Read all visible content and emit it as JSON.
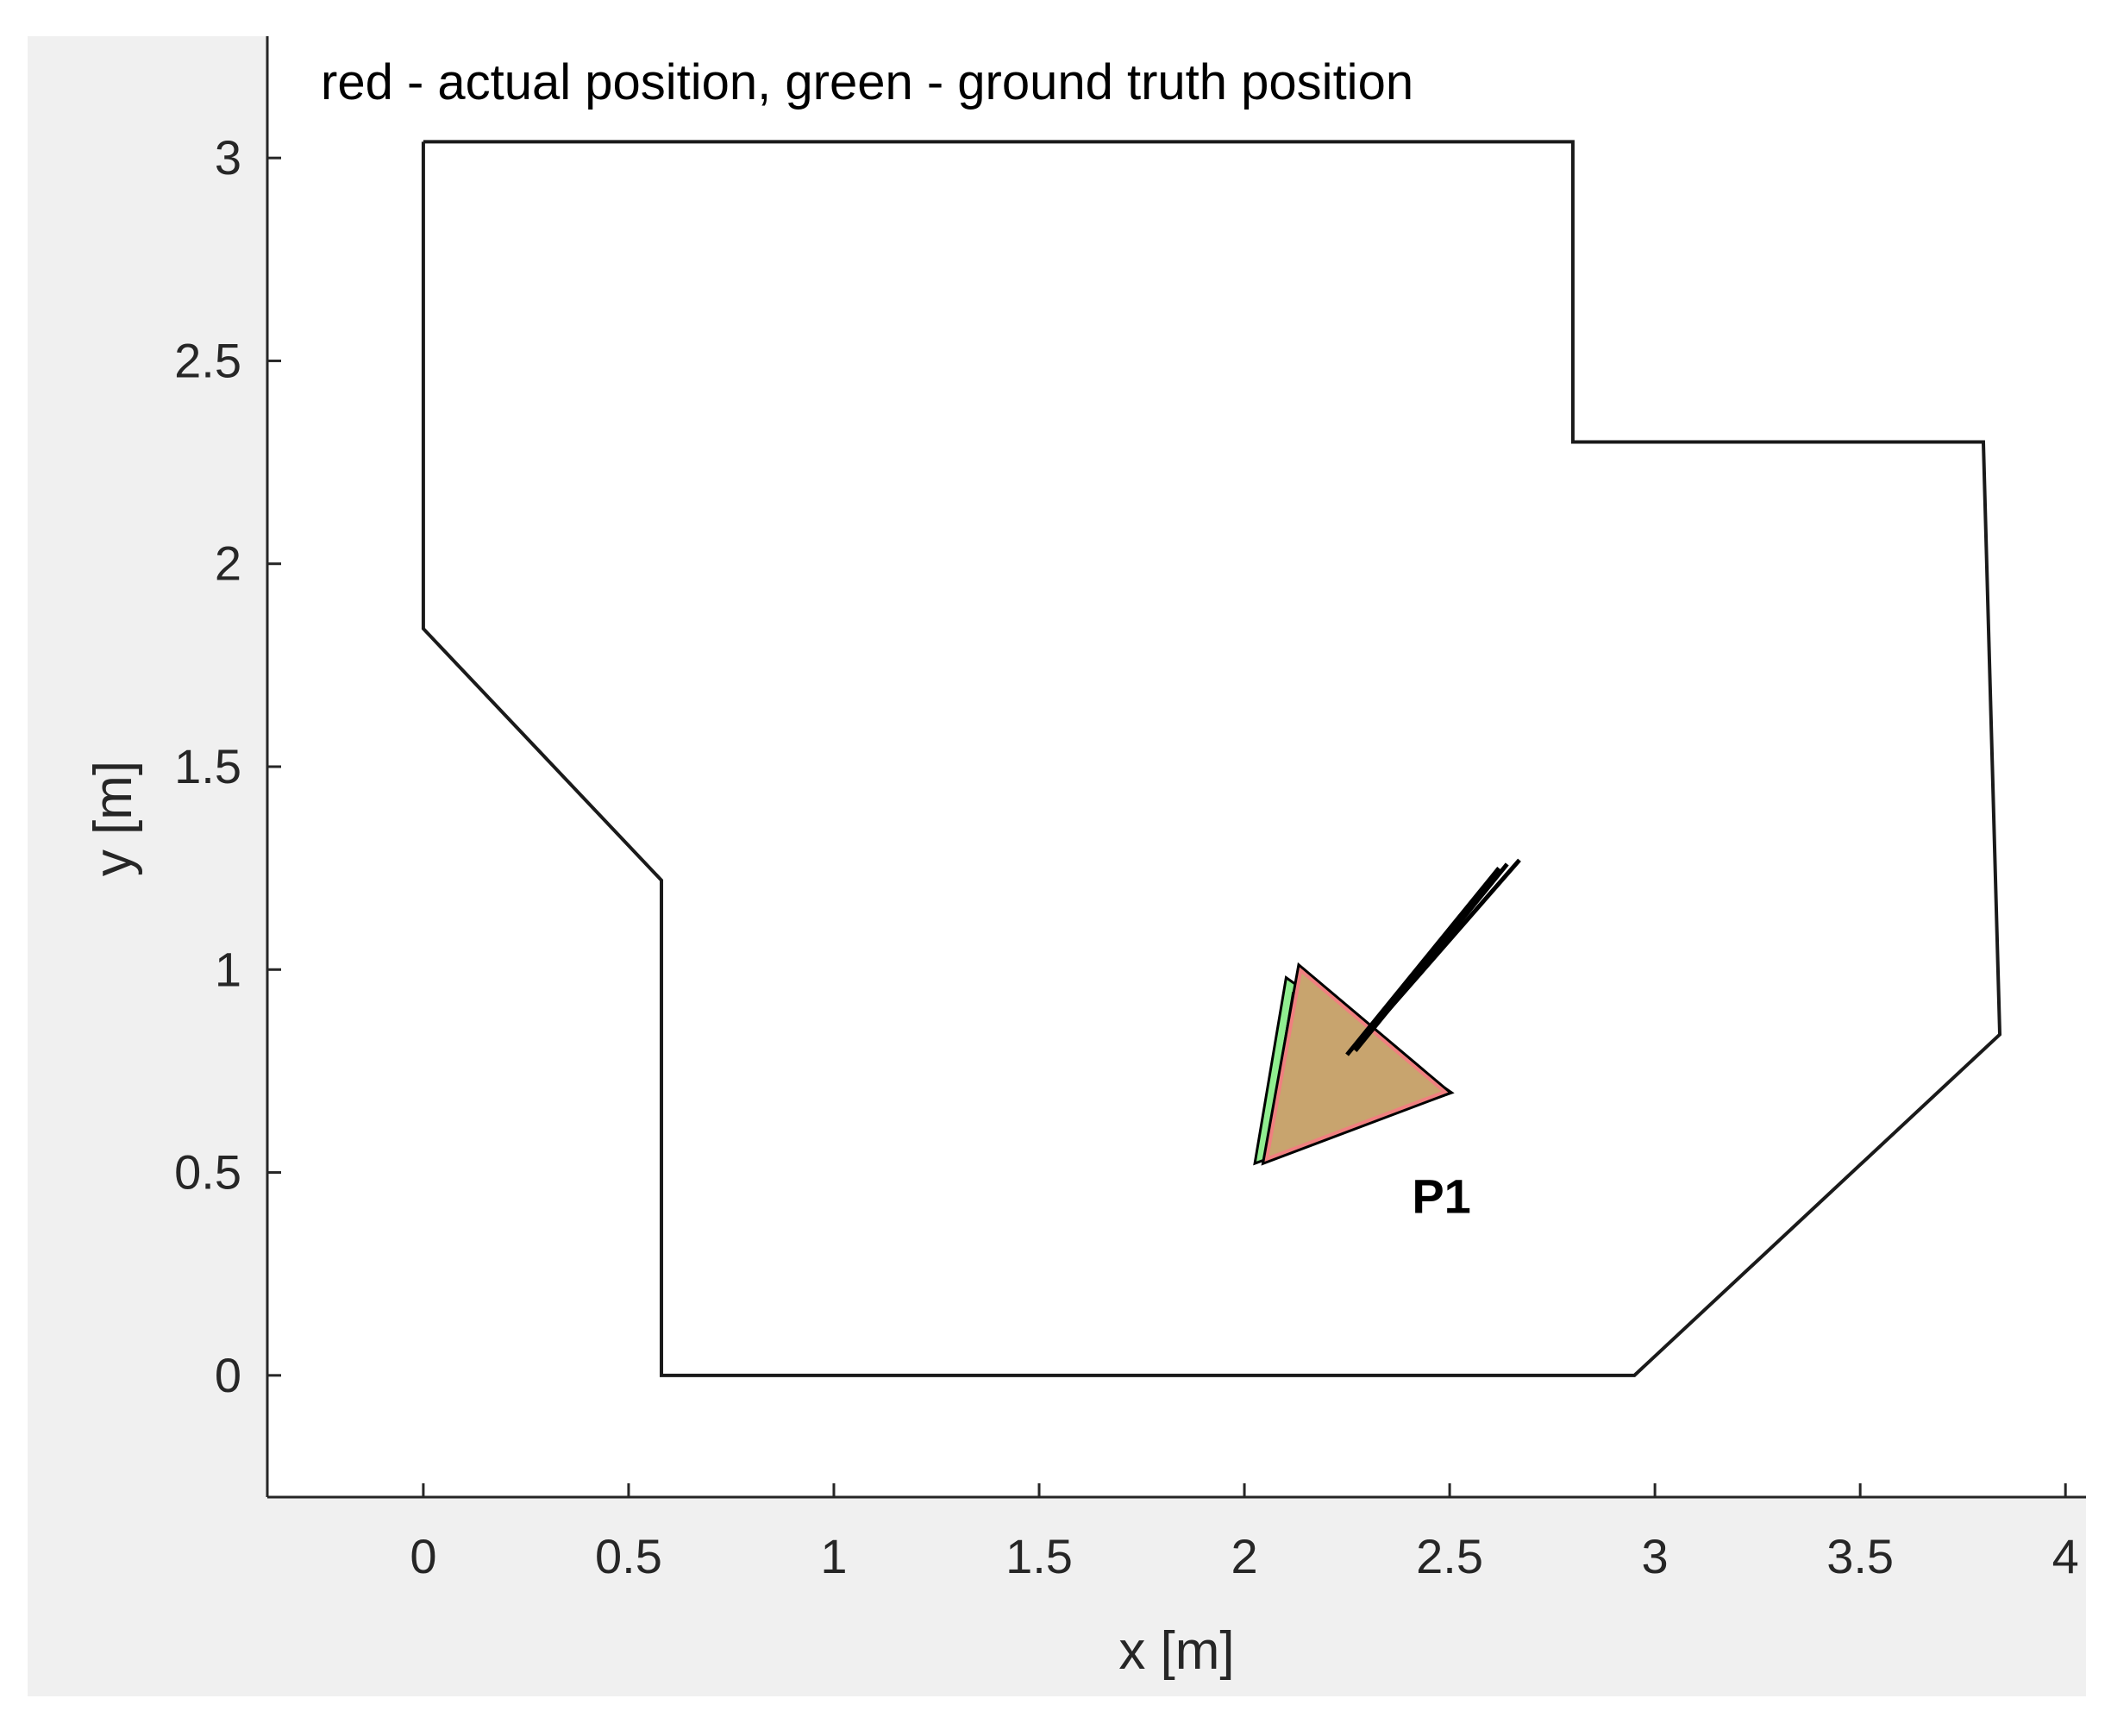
{
  "chart_data": {
    "type": "line",
    "title": "",
    "annotation": "red - actual position, green - ground truth position",
    "xlabel": "x [m]",
    "ylabel": "y [m]",
    "xlim": [
      -0.38,
      4.05
    ],
    "ylim": [
      -0.3,
      3.3
    ],
    "xticks": [
      0,
      0.5,
      1,
      1.5,
      2,
      2.5,
      3,
      3.5,
      4
    ],
    "xtick_labels": [
      "0",
      "0.5",
      "1",
      "1.5",
      "2",
      "2.5",
      "3",
      "3.5",
      "4"
    ],
    "yticks": [
      0,
      0.5,
      1,
      1.5,
      2,
      2.5,
      3
    ],
    "ytick_labels": [
      "0",
      "0.5",
      "1",
      "1.5",
      "2",
      "2.5",
      "3"
    ],
    "grid": false,
    "boundary": [
      [
        0.0,
        3.04
      ],
      [
        2.8,
        3.04
      ],
      [
        2.8,
        2.3
      ],
      [
        3.8,
        2.3
      ],
      [
        3.84,
        0.84
      ],
      [
        2.95,
        0.0
      ],
      [
        0.58,
        0.0
      ],
      [
        0.58,
        1.22
      ],
      [
        0.0,
        1.84
      ],
      [
        0.0,
        3.04
      ]
    ],
    "agents": [
      {
        "label": "P1",
        "label_pos": [
          2.48,
          0.4
        ],
        "actual_triangle": [
          [
            2.14,
            0.99
          ],
          [
            2.48,
            0.7
          ],
          [
            2.06,
            0.54
          ]
        ],
        "ground_truth_triangle": [
          [
            2.11,
            0.96
          ],
          [
            2.48,
            0.7
          ],
          [
            2.04,
            0.54
          ]
        ],
        "fill_color": "#c8a46e",
        "actual_color": "#f08080",
        "ground_truth_color": "#90ee90",
        "trajectory": [
          {
            "x": [
              2.67,
              2.29
            ],
            "y": [
              1.27,
              0.83
            ]
          },
          {
            "x": [
              2.64,
              2.27
            ],
            "y": [
              1.26,
              0.8
            ]
          },
          {
            "x": [
              2.62,
              2.25
            ],
            "y": [
              1.25,
              0.79
            ]
          }
        ]
      }
    ]
  }
}
